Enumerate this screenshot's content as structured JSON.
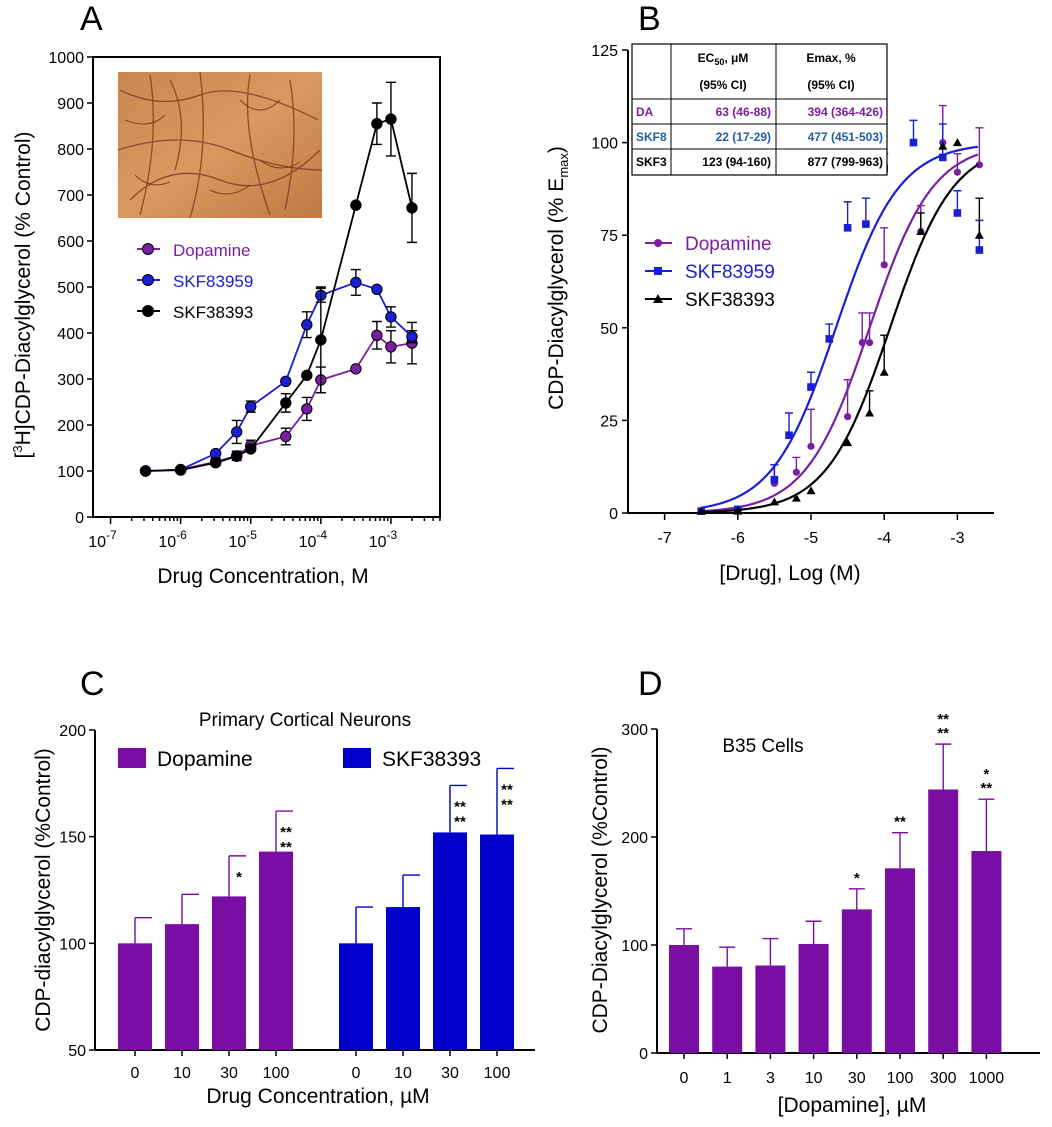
{
  "colors": {
    "dopamine": "#7b1fa2",
    "skf83959": "#1a1fd6",
    "skf38393": "#000000",
    "bar_purple": "#7a0da3",
    "bar_blue": "#0000cc",
    "table_skf8": "#1f5fa0"
  },
  "chart_data": [
    {
      "id": "A",
      "panel_label": "A",
      "type": "line",
      "title": "",
      "xlabel": "Drug Concentration, M",
      "ylabel_super": "3",
      "ylabel_pre": "[",
      "ylabel_post": "H]CDP-Diacylglycerol (% Control)",
      "x_scale": "log",
      "xlim": [
        -7.25,
        -2.3
      ],
      "ylim": [
        0,
        1000
      ],
      "x_ticks": [
        {
          "exp": -7,
          "label": "10",
          "sup": "-7"
        },
        {
          "exp": -6,
          "label": "10",
          "sup": "-6"
        },
        {
          "exp": -5,
          "label": "10",
          "sup": "-5"
        },
        {
          "exp": -4,
          "label": "10",
          "sup": "-4"
        },
        {
          "exp": -3,
          "label": "10",
          "sup": "-3"
        }
      ],
      "y_ticks": [
        0,
        100,
        200,
        300,
        400,
        500,
        600,
        700,
        800,
        900,
        1000
      ],
      "inset": "neuron micrograph (photo)",
      "legend": "upper-left",
      "series": [
        {
          "name": "Dopamine",
          "color": "#7b1fa2",
          "x": [
            -6.5,
            -6,
            -5.5,
            -5.2,
            -5,
            -4.5,
            -4.2,
            -4,
            -3.5,
            -3.2,
            -3,
            -2.7
          ],
          "y": [
            100,
            103,
            120,
            133,
            155,
            175,
            235,
            298,
            322,
            395,
            370,
            378
          ],
          "err": [
            0,
            0,
            8,
            10,
            12,
            18,
            25,
            28,
            0,
            30,
            35,
            45
          ]
        },
        {
          "name": "SKF83959",
          "color": "#1a1fd6",
          "x": [
            -6.5,
            -6,
            -5.5,
            -5.2,
            -5,
            -4.5,
            -4.2,
            -4,
            -3.5,
            -3.2,
            -3,
            -2.7
          ],
          "y": [
            100,
            103,
            138,
            185,
            240,
            295,
            418,
            482,
            510,
            495,
            435,
            392
          ],
          "err": [
            0,
            0,
            0,
            25,
            12,
            0,
            28,
            15,
            28,
            0,
            22,
            13
          ]
        },
        {
          "name": "SKF38393",
          "color": "#000000",
          "x": [
            -6.5,
            -6,
            -5.5,
            -5.2,
            -5,
            -4.5,
            -4.2,
            -4,
            -3.5,
            -3.2,
            -3,
            -2.7
          ],
          "y": [
            100,
            102,
            118,
            132,
            148,
            248,
            308,
            385,
            678,
            855,
            865,
            672
          ],
          "err": [
            0,
            0,
            0,
            0,
            0,
            20,
            0,
            115,
            0,
            45,
            80,
            75
          ]
        }
      ]
    },
    {
      "id": "B",
      "panel_label": "B",
      "type": "line",
      "xlabel": "[Drug], Log (M)",
      "ylabel_pre": "CDP-Diacylglycerol (% E",
      "ylabel_sub": "max",
      "ylabel_post": ")",
      "xlim": [
        -7.5,
        -2.5
      ],
      "ylim": [
        0,
        125
      ],
      "x_ticks": [
        -7,
        -6,
        -5,
        -4,
        -3
      ],
      "x_tick_labels": [
        "-7",
        "-6",
        "-5",
        "-4",
        "-3"
      ],
      "y_ticks": [
        0,
        25,
        50,
        75,
        100,
        125
      ],
      "legend": "middle-left",
      "series": [
        {
          "name": "Dopamine",
          "color": "#7b1fa2",
          "marker": "circle",
          "logEC50": -4.2,
          "hill": 1,
          "x": [
            -6.5,
            -6,
            -5.5,
            -5.2,
            -5,
            -4.5,
            -4.3,
            -4.2,
            -4,
            -3.5,
            -3.2,
            -3,
            -2.7
          ],
          "y": [
            0.5,
            1,
            8,
            11,
            18,
            26,
            46,
            46,
            67,
            76,
            100,
            92,
            94
          ],
          "err": [
            0,
            0,
            5,
            4,
            10,
            10,
            8,
            8,
            10,
            7,
            10,
            5,
            10
          ]
        },
        {
          "name": "SKF83959",
          "color": "#1a1fd6",
          "marker": "square",
          "logEC50": -4.66,
          "hill": 1,
          "x": [
            -6.5,
            -6,
            -5.5,
            -5.3,
            -5,
            -4.75,
            -4.5,
            -4.25,
            -4,
            -3.6,
            -3.2,
            -3,
            -2.7
          ],
          "y": [
            0.5,
            1,
            9,
            21,
            34,
            47,
            77,
            78,
            93,
            100,
            96,
            81,
            71
          ],
          "err": [
            0,
            0,
            4,
            6,
            4,
            4,
            7,
            7,
            4,
            6,
            9,
            6,
            8
          ]
        },
        {
          "name": "SKF38393",
          "color": "#000000",
          "marker": "triangle",
          "logEC50": -3.92,
          "hill": 1,
          "x": [
            -6.5,
            -6,
            -5.5,
            -5.2,
            -5,
            -4.5,
            -4.2,
            -4,
            -3.5,
            -3.2,
            -3,
            -2.7
          ],
          "y": [
            0.5,
            0.5,
            3,
            4,
            6,
            19,
            27,
            38,
            76,
            99,
            100,
            75
          ],
          "err": [
            0,
            0,
            0,
            0,
            0,
            0,
            6,
            10,
            5,
            0,
            0,
            10
          ]
        }
      ],
      "table": {
        "header1": [
          "EC",
          "50",
          "μM",
          "Emax, %"
        ],
        "header2": [
          "(95% CI)",
          "(95% CI)"
        ],
        "rows": [
          {
            "name": "DA",
            "ec50": "63 (46-88)",
            "emax": "394 (364-426)",
            "color": "#7b1fa2"
          },
          {
            "name": "SKF8",
            "ec50": "22 (17-29)",
            "emax": "477 (451-503)",
            "color": "#1f5fa0"
          },
          {
            "name": "SKF3",
            "ec50": "123 (94-160)",
            "emax": "877 (799-963)",
            "color": "#000000"
          }
        ]
      }
    },
    {
      "id": "C",
      "panel_label": "C",
      "type": "bar",
      "title": "Primary Cortical Neurons",
      "xlabel": "Drug Concentration, µM",
      "ylabel": "CDP-diacylglycerol (%Control)",
      "ylim": [
        50,
        200
      ],
      "y_ticks": [
        50,
        100,
        150,
        200
      ],
      "series": [
        {
          "name": "Dopamine",
          "color": "#7a0da3",
          "categories": [
            "0",
            "10",
            "30",
            "100"
          ],
          "values": [
            100,
            109,
            122,
            143
          ],
          "err": [
            12,
            14,
            19,
            19
          ],
          "stars": [
            [],
            [],
            [
              "*"
            ],
            [
              "**",
              "**"
            ]
          ]
        },
        {
          "name": "SKF38393",
          "color": "#0000cc",
          "categories": [
            "0",
            "10",
            "30",
            "100"
          ],
          "values": [
            100,
            117,
            152,
            151
          ],
          "err": [
            17,
            15,
            22,
            31
          ],
          "stars": [
            [],
            [],
            [
              "**",
              "**"
            ],
            [
              "**",
              "**"
            ]
          ]
        }
      ]
    },
    {
      "id": "D",
      "panel_label": "D",
      "type": "bar",
      "title": "B35 Cells",
      "xlabel": "[Dopamine], µM",
      "ylabel": "CDP-Diacylglycerol (%Control)",
      "ylim": [
        0,
        300
      ],
      "y_ticks": [
        0,
        100,
        200,
        300
      ],
      "categories": [
        "0",
        "1",
        "3",
        "10",
        "30",
        "100",
        "300",
        "1000"
      ],
      "values": [
        100,
        80,
        81,
        101,
        133,
        171,
        244,
        187
      ],
      "err": [
        15,
        18,
        25,
        21,
        19,
        33,
        42,
        48
      ],
      "stars": [
        [],
        [],
        [],
        [],
        [
          "*"
        ],
        [
          "**"
        ],
        [
          "**",
          "**"
        ],
        [
          "*",
          "**"
        ]
      ],
      "color": "#7a0da3"
    }
  ]
}
